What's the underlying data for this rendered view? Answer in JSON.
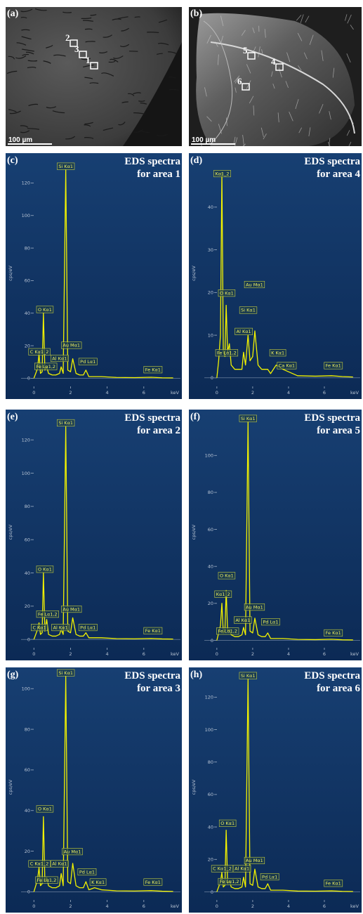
{
  "images": [
    {
      "panel": "(a)",
      "scale_bar": "100 µm",
      "areas": [
        "1",
        "2",
        "3"
      ]
    },
    {
      "panel": "(b)",
      "scale_bar": "100 µm",
      "areas": [
        "4",
        "5",
        "6"
      ]
    }
  ],
  "chart_data": [
    {
      "type": "line",
      "panel": "(c)",
      "title": "EDS spectra",
      "subtitle": "for area 1",
      "x_label": "keV",
      "y_label": "cps/eV",
      "xlim": [
        -0.7,
        8.0
      ],
      "xticks": [
        0,
        2,
        4,
        6
      ],
      "ylim": [
        -5,
        134
      ],
      "yticks": [
        0,
        20,
        40,
        60,
        80,
        100,
        120
      ],
      "x": [
        0,
        0.1,
        0.2,
        0.28,
        0.36,
        0.45,
        0.52,
        0.6,
        0.7,
        0.8,
        1.0,
        1.2,
        1.4,
        1.49,
        1.6,
        1.74,
        1.85,
        2.0,
        2.12,
        2.3,
        2.5,
        2.7,
        2.84,
        3.0,
        3.31,
        3.69,
        4.5,
        5.5,
        6.4,
        7.0,
        7.6
      ],
      "series": [
        {
          "color": "#f2f200",
          "values": [
            0,
            3,
            6,
            15,
            3,
            4,
            40,
            5,
            7,
            3,
            2,
            2,
            3,
            7,
            3,
            128,
            5,
            4,
            12,
            3,
            2,
            2,
            5,
            1,
            1,
            1,
            0.5,
            0.4,
            0.6,
            0.3,
            0.2
          ]
        }
      ],
      "peaks": [
        {
          "text": "Si Kα1",
          "x": 1.74,
          "y": 128
        },
        {
          "text": "O Kα1",
          "x": 0.6,
          "y": 40
        },
        {
          "text": "C Kα1_2",
          "x": 0.3,
          "y": 14
        },
        {
          "text": "Fe Lα1,2",
          "x": 0.65,
          "y": 5
        },
        {
          "text": "Al Kα1",
          "x": 1.4,
          "y": 10
        },
        {
          "text": "Au Mα1",
          "x": 2.05,
          "y": 18
        },
        {
          "text": "Pd Lα1",
          "x": 2.95,
          "y": 8
        },
        {
          "text": "Fe Kα1",
          "x": 6.5,
          "y": 3
        }
      ]
    },
    {
      "type": "line",
      "panel": "(d)",
      "title": "EDS spectra",
      "subtitle": "for area 4",
      "x_label": "keV",
      "y_label": "cps/eV",
      "xlim": [
        -0.7,
        8.0
      ],
      "xticks": [
        0,
        2,
        4,
        6
      ],
      "ylim": [
        -2,
        51
      ],
      "yticks": [
        0,
        10,
        20,
        30,
        40
      ],
      "x": [
        0,
        0.1,
        0.2,
        0.28,
        0.36,
        0.45,
        0.52,
        0.6,
        0.7,
        0.8,
        1.0,
        1.2,
        1.4,
        1.49,
        1.6,
        1.74,
        1.85,
        2.0,
        2.12,
        2.3,
        2.5,
        2.7,
        2.84,
        3.0,
        3.31,
        3.69,
        4.5,
        5.5,
        6.4,
        7.0,
        7.6
      ],
      "series": [
        {
          "color": "#f2f200",
          "values": [
            0,
            4,
            10,
            48,
            6,
            5,
            17,
            6,
            8,
            3,
            2,
            2,
            2,
            6,
            3,
            10,
            4,
            5,
            11,
            3,
            2,
            2,
            2,
            1,
            3,
            2,
            0.5,
            0.4,
            0.5,
            0.3,
            0.2
          ]
        }
      ],
      "peaks": [
        {
          "text": "Kα1_2",
          "x": 0.3,
          "y": 47
        },
        {
          "text": "O Kα1",
          "x": 0.55,
          "y": 19
        },
        {
          "text": "Si Kα1",
          "x": 1.75,
          "y": 15
        },
        {
          "text": "Au Mα1",
          "x": 2.1,
          "y": 21
        },
        {
          "text": "Al Kα1",
          "x": 1.5,
          "y": 10
        },
        {
          "text": "Fe Lα1,2",
          "x": 0.55,
          "y": 5
        },
        {
          "text": "K Kα1",
          "x": 3.4,
          "y": 5
        },
        {
          "text": "Ca Kα1",
          "x": 3.9,
          "y": 2
        },
        {
          "text": "Fe Kα1",
          "x": 6.5,
          "y": 2
        }
      ]
    },
    {
      "type": "line",
      "panel": "(e)",
      "title": "EDS spectra",
      "subtitle": "for area 2",
      "x_label": "keV",
      "y_label": "cps/eV",
      "xlim": [
        -0.7,
        8.0
      ],
      "xticks": [
        0,
        2,
        4,
        6
      ],
      "ylim": [
        -5,
        134
      ],
      "yticks": [
        0,
        20,
        40,
        60,
        80,
        100,
        120
      ],
      "x": [
        0,
        0.1,
        0.2,
        0.28,
        0.36,
        0.45,
        0.52,
        0.6,
        0.7,
        0.8,
        1.0,
        1.2,
        1.4,
        1.49,
        1.6,
        1.74,
        1.85,
        2.0,
        2.12,
        2.3,
        2.5,
        2.7,
        2.84,
        3.0,
        3.31,
        3.69,
        4.5,
        5.5,
        6.4,
        7.0,
        7.6
      ],
      "series": [
        {
          "color": "#f2f200",
          "values": [
            0,
            3,
            6,
            10,
            3,
            4,
            40,
            5,
            12,
            3,
            2,
            2,
            3,
            6,
            3,
            128,
            5,
            4,
            13,
            3,
            2,
            2,
            4,
            1,
            1,
            1,
            0.5,
            0.4,
            0.6,
            0.3,
            0.2
          ]
        }
      ],
      "peaks": [
        {
          "text": "Si Kα1",
          "x": 1.74,
          "y": 128
        },
        {
          "text": "O Kα1",
          "x": 0.6,
          "y": 40
        },
        {
          "text": "Fe Lα1,2",
          "x": 0.75,
          "y": 13
        },
        {
          "text": "C Kα1",
          "x": 0.3,
          "y": 5
        },
        {
          "text": "Al Kα1",
          "x": 1.45,
          "y": 5
        },
        {
          "text": "Au Mα1",
          "x": 2.05,
          "y": 16
        },
        {
          "text": "Pd Lα1",
          "x": 2.95,
          "y": 5
        },
        {
          "text": "Fe Kα1",
          "x": 6.5,
          "y": 3
        }
      ]
    },
    {
      "type": "line",
      "panel": "(f)",
      "title": "EDS spectra",
      "subtitle": "for area 5",
      "x_label": "keV",
      "y_label": "cps/eV",
      "xlim": [
        -0.7,
        8.0
      ],
      "xticks": [
        0,
        2,
        4,
        6
      ],
      "ylim": [
        -4,
        121
      ],
      "yticks": [
        0,
        20,
        40,
        60,
        80,
        100
      ],
      "x": [
        0,
        0.1,
        0.2,
        0.28,
        0.36,
        0.45,
        0.52,
        0.6,
        0.7,
        0.8,
        1.0,
        1.2,
        1.4,
        1.49,
        1.6,
        1.74,
        1.85,
        2.0,
        2.12,
        2.3,
        2.5,
        2.7,
        2.84,
        3.0,
        3.31,
        3.69,
        4.5,
        5.5,
        6.4,
        7.0,
        7.6
      ],
      "series": [
        {
          "color": "#f2f200",
          "values": [
            0,
            4,
            8,
            20,
            4,
            5,
            27,
            5,
            6,
            3,
            2,
            2,
            3,
            7,
            3,
            118,
            5,
            4,
            12,
            3,
            2,
            2,
            4,
            1,
            1,
            1,
            0.5,
            0.4,
            0.6,
            0.3,
            0.2
          ]
        }
      ],
      "peaks": [
        {
          "text": "Si Kα1",
          "x": 1.74,
          "y": 118
        },
        {
          "text": "O Kα1",
          "x": 0.55,
          "y": 33
        },
        {
          "text": "Kα1_2",
          "x": 0.35,
          "y": 23
        },
        {
          "text": "Au Mα1",
          "x": 2.1,
          "y": 16
        },
        {
          "text": "Al Kα1",
          "x": 1.45,
          "y": 9
        },
        {
          "text": "Fe Lα1,2",
          "x": 0.6,
          "y": 3
        },
        {
          "text": "Pd Lα1",
          "x": 3.0,
          "y": 8
        },
        {
          "text": "Fe Kα1",
          "x": 6.5,
          "y": 2
        }
      ]
    },
    {
      "type": "line",
      "panel": "(g)",
      "title": "EDS spectra",
      "subtitle": "for area 3",
      "x_label": "keV",
      "y_label": "cps/eV",
      "xlim": [
        -0.7,
        8.0
      ],
      "xticks": [
        0,
        2,
        4,
        6
      ],
      "ylim": [
        -4,
        107
      ],
      "yticks": [
        0,
        20,
        40,
        60,
        80,
        100
      ],
      "x": [
        0,
        0.1,
        0.2,
        0.28,
        0.36,
        0.45,
        0.52,
        0.6,
        0.7,
        0.8,
        1.0,
        1.2,
        1.4,
        1.49,
        1.6,
        1.74,
        1.85,
        2.0,
        2.12,
        2.3,
        2.5,
        2.7,
        2.84,
        3.0,
        3.31,
        3.69,
        4.5,
        5.5,
        6.4,
        7.0,
        7.6
      ],
      "series": [
        {
          "color": "#f2f200",
          "values": [
            0,
            3,
            6,
            12,
            3,
            4,
            37,
            5,
            7,
            3,
            2,
            2,
            3,
            9,
            3,
            106,
            5,
            4,
            14,
            3,
            2,
            2,
            5,
            1,
            2,
            1,
            0.5,
            0.4,
            0.6,
            0.3,
            0.2
          ]
        }
      ],
      "peaks": [
        {
          "text": "Si Kα1",
          "x": 1.74,
          "y": 106
        },
        {
          "text": "O Kα1",
          "x": 0.6,
          "y": 39
        },
        {
          "text": "Au Mα1",
          "x": 2.1,
          "y": 18
        },
        {
          "text": "Al Kα1",
          "x": 1.4,
          "y": 12
        },
        {
          "text": "C Kα1_2",
          "x": 0.3,
          "y": 12
        },
        {
          "text": "Fe Lα1,2",
          "x": 0.7,
          "y": 4
        },
        {
          "text": "Pd Lα1",
          "x": 2.9,
          "y": 8
        },
        {
          "text": "K Kα1",
          "x": 3.5,
          "y": 3
        },
        {
          "text": "Fe Kα1",
          "x": 6.5,
          "y": 3
        }
      ]
    },
    {
      "type": "line",
      "panel": "(h)",
      "title": "EDS spectra",
      "subtitle": "for area 6",
      "x_label": "keV",
      "y_label": "cps/eV",
      "xlim": [
        -0.7,
        8.0
      ],
      "xticks": [
        0,
        2,
        4,
        6
      ],
      "ylim": [
        -5,
        134
      ],
      "yticks": [
        0,
        20,
        40,
        60,
        80,
        100,
        120
      ],
      "x": [
        0,
        0.1,
        0.2,
        0.28,
        0.36,
        0.45,
        0.52,
        0.6,
        0.7,
        0.8,
        1.0,
        1.2,
        1.4,
        1.49,
        1.6,
        1.74,
        1.85,
        2.0,
        2.12,
        2.3,
        2.5,
        2.7,
        2.84,
        3.0,
        3.31,
        3.69,
        4.5,
        5.5,
        6.4,
        7.0,
        7.6
      ],
      "series": [
        {
          "color": "#f2f200",
          "values": [
            0,
            3,
            6,
            12,
            3,
            4,
            38,
            5,
            7,
            3,
            2,
            2,
            3,
            9,
            3,
            131,
            5,
            4,
            14,
            3,
            2,
            2,
            5,
            1,
            1,
            1,
            0.5,
            0.4,
            0.6,
            0.3,
            0.2
          ]
        }
      ],
      "peaks": [
        {
          "text": "Si Kα1",
          "x": 1.74,
          "y": 131
        },
        {
          "text": "O Kα1",
          "x": 0.6,
          "y": 40
        },
        {
          "text": "Au Mα1",
          "x": 2.1,
          "y": 17
        },
        {
          "text": "C Kα1_2",
          "x": 0.3,
          "y": 12
        },
        {
          "text": "Al Kα1",
          "x": 1.4,
          "y": 12
        },
        {
          "text": "Fe Lα1,2",
          "x": 0.7,
          "y": 4
        },
        {
          "text": "Pd Lα1",
          "x": 2.95,
          "y": 7
        },
        {
          "text": "Fe Kα1",
          "x": 6.5,
          "y": 3
        }
      ]
    }
  ]
}
